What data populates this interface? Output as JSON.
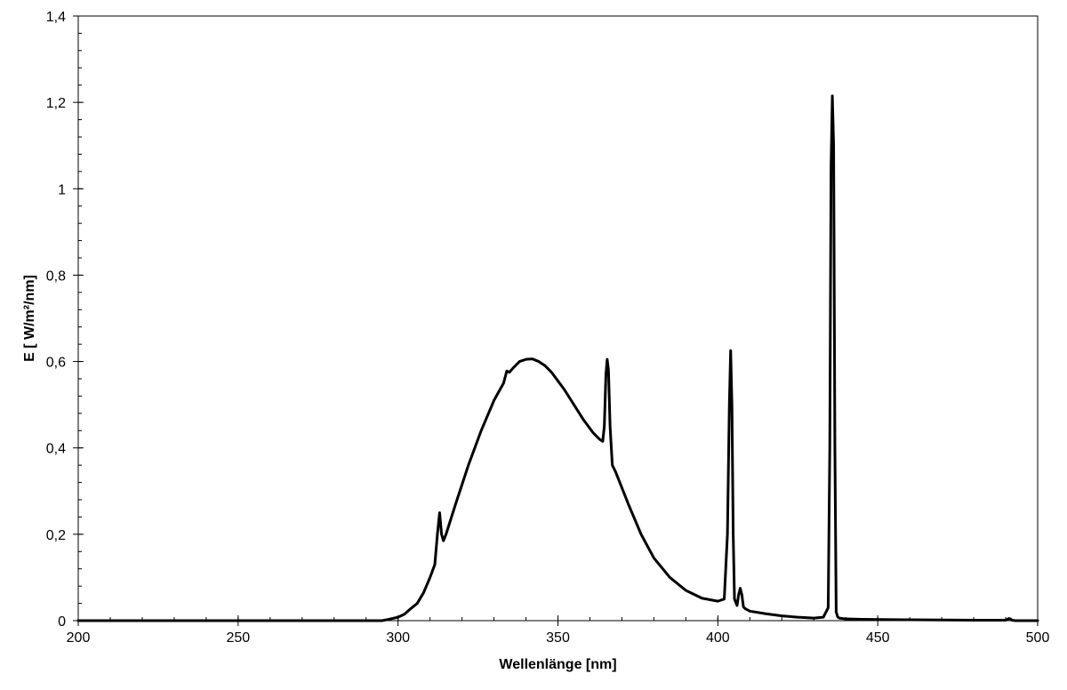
{
  "chart_data": {
    "type": "line",
    "title": "",
    "xlabel": "Wellenlänge [nm]",
    "ylabel": "E [ W/m²/nm]",
    "xlim": [
      200,
      500
    ],
    "ylim": [
      0,
      1.4
    ],
    "x_ticks": [
      200,
      250,
      300,
      350,
      400,
      450,
      500
    ],
    "x_tick_labels": [
      "200",
      "250",
      "300",
      "350",
      "400",
      "450",
      "500"
    ],
    "y_ticks": [
      0,
      0.2,
      0.4,
      0.6,
      0.8,
      1.0,
      1.2,
      1.4
    ],
    "y_tick_labels": [
      "0",
      "0,2",
      "0,4",
      "0,6",
      "0,8",
      "1",
      "1,2",
      "1,4"
    ],
    "grid": false,
    "legend": "none",
    "line_color": "#000000",
    "series": [
      {
        "x": [
          200,
          295,
          297,
          300,
          302,
          304,
          306,
          308,
          310,
          311.5,
          312.3,
          313,
          313.6,
          314.2,
          315,
          318,
          322,
          326,
          330,
          333,
          334,
          334.8,
          336,
          338,
          340,
          342,
          344,
          346,
          348,
          350,
          352,
          355,
          358,
          361,
          363,
          364,
          364.5,
          365,
          365.4,
          365.8,
          366.3,
          367,
          368,
          372,
          376,
          380,
          385,
          390,
          395,
          400,
          402,
          403,
          403.6,
          404,
          404.4,
          404.8,
          405.2,
          406,
          406.5,
          407,
          407.5,
          408,
          408.5,
          410,
          415,
          420,
          425,
          430,
          433,
          434.5,
          435,
          435.4,
          435.8,
          436.2,
          436.6,
          437,
          437.5,
          438,
          440,
          445,
          460,
          480,
          490,
          491,
          491.5,
          492,
          493,
          500
        ],
        "y": [
          0,
          0,
          0.003,
          0.008,
          0.015,
          0.028,
          0.04,
          0.065,
          0.1,
          0.13,
          0.2,
          0.25,
          0.2,
          0.185,
          0.2,
          0.27,
          0.36,
          0.44,
          0.51,
          0.55,
          0.578,
          0.575,
          0.585,
          0.6,
          0.605,
          0.606,
          0.6,
          0.59,
          0.575,
          0.555,
          0.535,
          0.5,
          0.465,
          0.435,
          0.42,
          0.415,
          0.45,
          0.57,
          0.605,
          0.58,
          0.45,
          0.36,
          0.345,
          0.27,
          0.2,
          0.145,
          0.1,
          0.07,
          0.052,
          0.045,
          0.05,
          0.2,
          0.5,
          0.625,
          0.5,
          0.2,
          0.05,
          0.035,
          0.06,
          0.075,
          0.06,
          0.032,
          0.028,
          0.022,
          0.016,
          0.011,
          0.008,
          0.006,
          0.008,
          0.03,
          0.4,
          1.05,
          1.215,
          1.1,
          0.4,
          0.02,
          0.008,
          0.006,
          0.004,
          0.003,
          0.002,
          0.001,
          0.001,
          0.005,
          0.004,
          0.001,
          0,
          0
        ]
      }
    ]
  }
}
